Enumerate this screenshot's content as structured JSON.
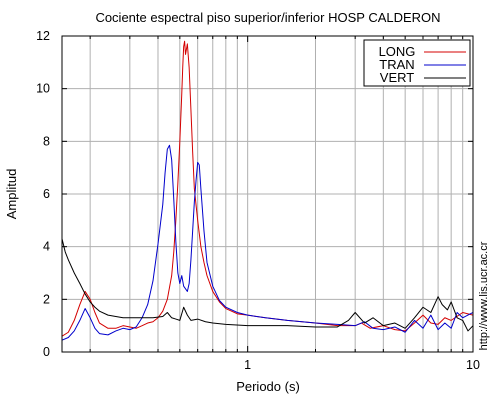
{
  "chart_data": {
    "type": "line",
    "title": "Cociente espectral piso superior/inferior  HOSP CALDERON",
    "xlabel": "Periodo (s)",
    "ylabel": "Amplitud",
    "xscale": "log",
    "xlim": [
      0.15,
      10
    ],
    "ylim": [
      0,
      12
    ],
    "grid": "on",
    "legend_position": "top-right",
    "x_ticks": [
      {
        "value": 1,
        "label": "1"
      },
      {
        "value": 10,
        "label": "10"
      }
    ],
    "y_ticks": [
      {
        "value": 0,
        "label": "0"
      },
      {
        "value": 2,
        "label": "2"
      },
      {
        "value": 4,
        "label": "4"
      },
      {
        "value": 6,
        "label": "6"
      },
      {
        "value": 8,
        "label": "8"
      },
      {
        "value": 10,
        "label": "10"
      },
      {
        "value": 12,
        "label": "12"
      }
    ],
    "annotation": "http://www.lis.ucr.ac.cr",
    "series": [
      {
        "name": "LONG",
        "color": "#d40000",
        "points": [
          [
            0.15,
            0.6
          ],
          [
            0.16,
            0.75
          ],
          [
            0.17,
            1.2
          ],
          [
            0.18,
            1.8
          ],
          [
            0.19,
            2.3
          ],
          [
            0.2,
            2.0
          ],
          [
            0.21,
            1.5
          ],
          [
            0.22,
            1.1
          ],
          [
            0.24,
            0.9
          ],
          [
            0.26,
            0.9
          ],
          [
            0.28,
            1.0
          ],
          [
            0.3,
            0.95
          ],
          [
            0.32,
            0.9
          ],
          [
            0.34,
            1.0
          ],
          [
            0.36,
            1.1
          ],
          [
            0.38,
            1.15
          ],
          [
            0.4,
            1.3
          ],
          [
            0.42,
            1.55
          ],
          [
            0.44,
            2.0
          ],
          [
            0.46,
            2.9
          ],
          [
            0.47,
            3.8
          ],
          [
            0.48,
            5.0
          ],
          [
            0.49,
            6.4
          ],
          [
            0.5,
            8.0
          ],
          [
            0.51,
            9.8
          ],
          [
            0.515,
            10.8
          ],
          [
            0.52,
            11.6
          ],
          [
            0.525,
            11.8
          ],
          [
            0.53,
            11.3
          ],
          [
            0.54,
            11.7
          ],
          [
            0.55,
            10.8
          ],
          [
            0.56,
            9.2
          ],
          [
            0.57,
            7.6
          ],
          [
            0.58,
            6.2
          ],
          [
            0.6,
            5.0
          ],
          [
            0.62,
            4.0
          ],
          [
            0.64,
            3.4
          ],
          [
            0.66,
            2.9
          ],
          [
            0.7,
            2.3
          ],
          [
            0.75,
            1.9
          ],
          [
            0.8,
            1.65
          ],
          [
            0.9,
            1.45
          ],
          [
            1.0,
            1.4
          ],
          [
            1.2,
            1.3
          ],
          [
            1.5,
            1.2
          ],
          [
            2.0,
            1.1
          ],
          [
            2.5,
            1.0
          ],
          [
            3.0,
            1.0
          ],
          [
            3.2,
            1.1
          ],
          [
            3.5,
            0.9
          ],
          [
            4.0,
            1.0
          ],
          [
            4.5,
            0.85
          ],
          [
            5.0,
            0.8
          ],
          [
            5.5,
            1.1
          ],
          [
            6.0,
            1.4
          ],
          [
            6.5,
            1.1
          ],
          [
            7.0,
            1.05
          ],
          [
            7.5,
            1.3
          ],
          [
            8.0,
            1.2
          ],
          [
            9.0,
            1.5
          ],
          [
            10.0,
            1.4
          ]
        ]
      },
      {
        "name": "TRAN",
        "color": "#0000cc",
        "points": [
          [
            0.15,
            0.45
          ],
          [
            0.16,
            0.55
          ],
          [
            0.17,
            0.8
          ],
          [
            0.18,
            1.2
          ],
          [
            0.19,
            1.65
          ],
          [
            0.2,
            1.3
          ],
          [
            0.21,
            0.9
          ],
          [
            0.22,
            0.7
          ],
          [
            0.24,
            0.65
          ],
          [
            0.26,
            0.8
          ],
          [
            0.28,
            0.9
          ],
          [
            0.3,
            0.85
          ],
          [
            0.32,
            0.95
          ],
          [
            0.34,
            1.3
          ],
          [
            0.36,
            1.8
          ],
          [
            0.38,
            2.7
          ],
          [
            0.4,
            4.1
          ],
          [
            0.42,
            5.6
          ],
          [
            0.43,
            6.8
          ],
          [
            0.44,
            7.7
          ],
          [
            0.45,
            7.85
          ],
          [
            0.46,
            7.3
          ],
          [
            0.47,
            5.8
          ],
          [
            0.48,
            4.2
          ],
          [
            0.49,
            3.0
          ],
          [
            0.5,
            2.6
          ],
          [
            0.51,
            2.9
          ],
          [
            0.52,
            2.5
          ],
          [
            0.53,
            2.4
          ],
          [
            0.54,
            2.3
          ],
          [
            0.55,
            2.6
          ],
          [
            0.56,
            3.5
          ],
          [
            0.57,
            4.6
          ],
          [
            0.58,
            5.7
          ],
          [
            0.59,
            6.5
          ],
          [
            0.6,
            7.2
          ],
          [
            0.61,
            7.1
          ],
          [
            0.62,
            6.2
          ],
          [
            0.64,
            4.6
          ],
          [
            0.66,
            3.4
          ],
          [
            0.7,
            2.5
          ],
          [
            0.75,
            1.95
          ],
          [
            0.8,
            1.7
          ],
          [
            0.9,
            1.5
          ],
          [
            1.0,
            1.4
          ],
          [
            1.2,
            1.3
          ],
          [
            1.5,
            1.2
          ],
          [
            2.0,
            1.1
          ],
          [
            2.5,
            1.05
          ],
          [
            3.0,
            1.0
          ],
          [
            3.3,
            1.15
          ],
          [
            3.6,
            0.9
          ],
          [
            4.0,
            0.85
          ],
          [
            4.5,
            0.95
          ],
          [
            5.0,
            0.75
          ],
          [
            5.5,
            1.2
          ],
          [
            6.0,
            0.9
          ],
          [
            6.5,
            1.4
          ],
          [
            7.0,
            0.85
          ],
          [
            7.5,
            1.1
          ],
          [
            8.0,
            0.9
          ],
          [
            8.5,
            1.5
          ],
          [
            9.0,
            1.3
          ],
          [
            10.0,
            1.5
          ]
        ]
      },
      {
        "name": "VERT",
        "color": "#000000",
        "points": [
          [
            0.15,
            4.3
          ],
          [
            0.155,
            3.8
          ],
          [
            0.16,
            3.5
          ],
          [
            0.17,
            3.0
          ],
          [
            0.18,
            2.6
          ],
          [
            0.19,
            2.2
          ],
          [
            0.2,
            1.9
          ],
          [
            0.21,
            1.7
          ],
          [
            0.22,
            1.55
          ],
          [
            0.24,
            1.4
          ],
          [
            0.26,
            1.35
          ],
          [
            0.28,
            1.3
          ],
          [
            0.3,
            1.3
          ],
          [
            0.34,
            1.3
          ],
          [
            0.38,
            1.3
          ],
          [
            0.42,
            1.35
          ],
          [
            0.44,
            1.5
          ],
          [
            0.46,
            1.3
          ],
          [
            0.48,
            1.25
          ],
          [
            0.5,
            1.2
          ],
          [
            0.52,
            1.7
          ],
          [
            0.54,
            1.4
          ],
          [
            0.56,
            1.2
          ],
          [
            0.6,
            1.25
          ],
          [
            0.65,
            1.15
          ],
          [
            0.7,
            1.1
          ],
          [
            0.8,
            1.05
          ],
          [
            1.0,
            1.0
          ],
          [
            1.5,
            1.0
          ],
          [
            2.0,
            0.95
          ],
          [
            2.5,
            0.95
          ],
          [
            2.8,
            1.2
          ],
          [
            3.0,
            1.5
          ],
          [
            3.3,
            1.1
          ],
          [
            3.6,
            1.3
          ],
          [
            4.0,
            1.0
          ],
          [
            4.5,
            1.1
          ],
          [
            5.0,
            0.9
          ],
          [
            5.5,
            1.3
          ],
          [
            6.0,
            1.7
          ],
          [
            6.5,
            1.5
          ],
          [
            7.0,
            2.1
          ],
          [
            7.3,
            1.8
          ],
          [
            7.7,
            1.6
          ],
          [
            8.0,
            1.9
          ],
          [
            8.5,
            1.3
          ],
          [
            9.0,
            1.2
          ],
          [
            9.5,
            0.8
          ],
          [
            10.0,
            1.0
          ]
        ]
      }
    ]
  }
}
